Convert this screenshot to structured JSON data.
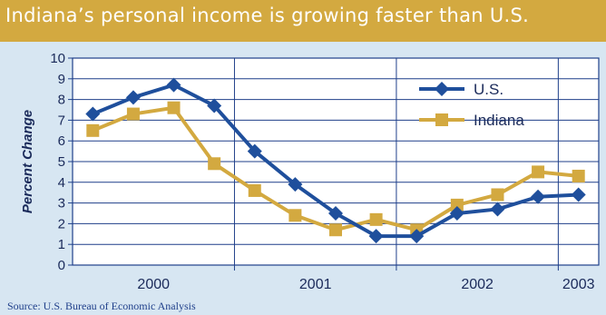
{
  "title": "Indiana’s personal income is growing faster than U.S.",
  "source": "Source: U.S. Bureau of Economic Analysis",
  "colors": {
    "banner": "#d3a940",
    "background": "#d7e6f2",
    "axis": "#1f3f8a",
    "us": "#1f4f9c",
    "indiana": "#d3a940"
  },
  "chart_data": {
    "type": "line",
    "ylabel": "Percent Change",
    "xlabel": "",
    "ylim": [
      0,
      10
    ],
    "yticks": [
      "0",
      "1",
      "2",
      "3",
      "4",
      "5",
      "6",
      "7",
      "8",
      "9",
      "10"
    ],
    "grid": "horizontal and year separators",
    "legend_position": "top-right",
    "year_groups": [
      {
        "label": "2000",
        "points": 4
      },
      {
        "label": "2001",
        "points": 4
      },
      {
        "label": "2002",
        "points": 4
      },
      {
        "label": "2003",
        "points": 1
      }
    ],
    "series": [
      {
        "name": "U.S.",
        "marker": "diamond",
        "values": [
          7.3,
          8.1,
          8.7,
          7.7,
          5.5,
          3.9,
          2.5,
          1.4,
          1.4,
          2.5,
          2.7,
          3.3,
          3.4
        ]
      },
      {
        "name": "Indiana",
        "marker": "square",
        "values": [
          6.5,
          7.3,
          7.6,
          4.9,
          3.6,
          2.4,
          1.7,
          2.2,
          1.7,
          2.9,
          3.4,
          4.5,
          4.3
        ]
      }
    ]
  }
}
